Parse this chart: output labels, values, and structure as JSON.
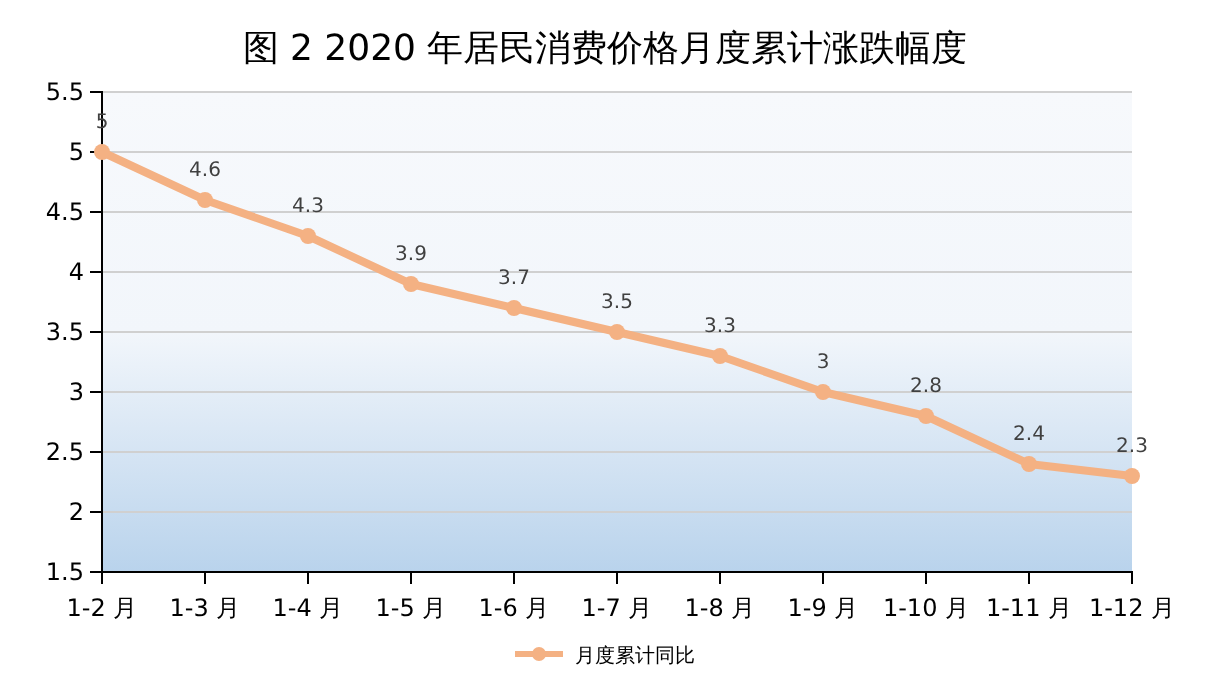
{
  "chart_data": {
    "type": "line",
    "title": "图 2 2020 年居民消费价格月度累计涨跌幅度",
    "categories": [
      "1-2 月",
      "1-3 月",
      "1-4 月",
      "1-5 月",
      "1-6 月",
      "1-7 月",
      "1-8 月",
      "1-9 月",
      "1-10 月",
      "1-11 月",
      "1-12 月"
    ],
    "series": [
      {
        "name": "月度累计同比",
        "color": "#f4b183",
        "values": [
          5,
          4.6,
          4.3,
          3.9,
          3.7,
          3.5,
          3.3,
          3,
          2.8,
          2.4,
          2.3
        ]
      }
    ],
    "ylim": [
      1.5,
      5.5
    ],
    "yticks": [
      1.5,
      2,
      2.5,
      3,
      3.5,
      4,
      4.5,
      5,
      5.5
    ],
    "grid": "y",
    "legend": "bottom",
    "marker": "circle",
    "line_style": "solid",
    "data_labels": true
  }
}
